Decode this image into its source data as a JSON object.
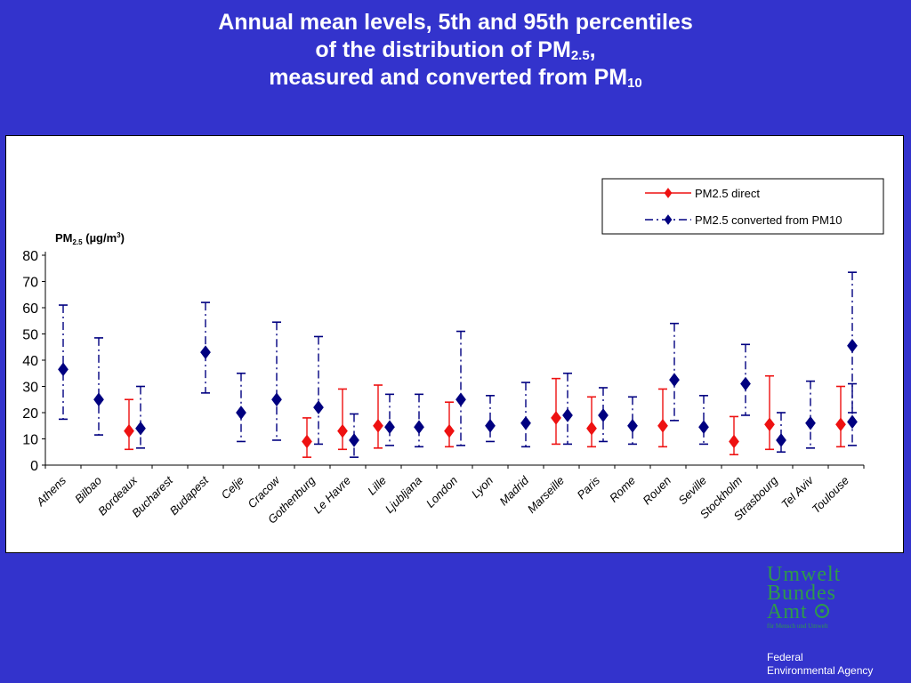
{
  "slide": {
    "title_line1": "Annual mean levels, 5th and 95th percentiles",
    "title_line2_text": "of the distribution of PM",
    "title_line2_sub": "2.5",
    "title_line2_suffix": ",",
    "title_line3_text": "measured and converted from PM",
    "title_line3_sub": "10"
  },
  "logo": {
    "line1": "Umwelt",
    "line2": "Bundes",
    "line3": "Amt",
    "tagline": "für Mensch und Umwelt",
    "emblem_icon": "globe-emblem-icon",
    "color": "#2e9a4a"
  },
  "agency": {
    "line1": "Federal",
    "line2": "Environmental Agency"
  },
  "chart_data": {
    "type": "scatter",
    "title": "",
    "ylabel_main": "PM",
    "ylabel_sub": "2.5",
    "ylabel_unit": " (µg/m",
    "ylabel_sup": "3",
    "ylabel_close": ")",
    "ylim": [
      0,
      80
    ],
    "yticks": [
      0,
      10,
      20,
      30,
      40,
      50,
      60,
      70,
      80
    ],
    "grid": false,
    "legend_position": "top-right",
    "categories": [
      "Athens",
      "Bilbao",
      "Bordeaux",
      "Bucharest",
      "Budapest",
      "Celje",
      "Cracow",
      "Gothenburg",
      "Le Havre",
      "Lille",
      "Ljubljana",
      "London",
      "Lyon",
      "Madrid",
      "Marseille",
      "Paris",
      "Rome",
      "Rouen",
      "Seville",
      "Stockholm",
      "Strasbourg",
      "Tel Aviv",
      "Toulouse"
    ],
    "series": [
      {
        "name": "PM2.5 direct",
        "color": "#ee1111",
        "line_style": "solid",
        "points": [
          {
            "city": "Bordeaux",
            "mean": 13,
            "p5": 6,
            "p95": 25
          },
          {
            "city": "Gothenburg",
            "mean": 9,
            "p5": 3,
            "p95": 18
          },
          {
            "city": "Le Havre",
            "mean": 13,
            "p5": 6,
            "p95": 29
          },
          {
            "city": "Lille",
            "mean": 15,
            "p5": 6.5,
            "p95": 30.5
          },
          {
            "city": "London",
            "mean": 13,
            "p5": 7,
            "p95": 24
          },
          {
            "city": "Marseille",
            "mean": 18,
            "p5": 8,
            "p95": 33
          },
          {
            "city": "Paris",
            "mean": 14,
            "p5": 7,
            "p95": 26
          },
          {
            "city": "Rouen",
            "mean": 15,
            "p5": 7,
            "p95": 29
          },
          {
            "city": "Stockholm",
            "mean": 9,
            "p5": 4,
            "p95": 18.5
          },
          {
            "city": "Strasbourg",
            "mean": 15.5,
            "p5": 6,
            "p95": 34
          },
          {
            "city": "Toulouse",
            "mean": 15.5,
            "p5": 7,
            "p95": 30
          }
        ]
      },
      {
        "name": "PM2.5 converted from PM10",
        "color": "#000080",
        "line_style": "dash-dot",
        "points": [
          {
            "city": "Athens",
            "mean": 36.5,
            "p5": 17.5,
            "p95": 61
          },
          {
            "city": "Bilbao",
            "mean": 25,
            "p5": 11.5,
            "p95": 48.5
          },
          {
            "city": "Bordeaux",
            "mean": 14,
            "p5": 6.5,
            "p95": 30
          },
          {
            "city": "Budapest",
            "mean": 43,
            "p5": 27.5,
            "p95": 62
          },
          {
            "city": "Celje",
            "mean": 20,
            "p5": 9,
            "p95": 35
          },
          {
            "city": "Cracow",
            "mean": 25,
            "p5": 9.5,
            "p95": 54.5
          },
          {
            "city": "Gothenburg",
            "mean": 22,
            "p5": 8,
            "p95": 49
          },
          {
            "city": "Le Havre",
            "mean": 9.5,
            "p5": 3,
            "p95": 19.5
          },
          {
            "city": "Lille",
            "mean": 14.5,
            "p5": 7.5,
            "p95": 27
          },
          {
            "city": "Ljubljana",
            "mean": 14.5,
            "p5": 7,
            "p95": 27
          },
          {
            "city": "London",
            "mean": 25,
            "p5": 7.5,
            "p95": 51
          },
          {
            "city": "Lyon",
            "mean": 15,
            "p5": 9,
            "p95": 26.5
          },
          {
            "city": "Madrid",
            "mean": 16,
            "p5": 7,
            "p95": 31.5
          },
          {
            "city": "Marseille",
            "mean": 19,
            "p5": 8,
            "p95": 35
          },
          {
            "city": "Paris",
            "mean": 19,
            "p5": 9,
            "p95": 29.5
          },
          {
            "city": "Rome",
            "mean": 15,
            "p5": 8,
            "p95": 26
          },
          {
            "city": "Rouen",
            "mean": 32.5,
            "p5": 17,
            "p95": 54
          },
          {
            "city": "Seville",
            "mean": 14.5,
            "p5": 8,
            "p95": 26.5
          },
          {
            "city": "Stockholm",
            "mean": 31,
            "p5": 19,
            "p95": 46
          },
          {
            "city": "Strasbourg",
            "mean": 9.5,
            "p5": 5,
            "p95": 20
          },
          {
            "city": "Tel Aviv",
            "mean": 16,
            "p5": 6.5,
            "p95": 32
          },
          {
            "city": "Toulouse",
            "mean": 45.5,
            "p5": 20,
            "p95": 73.5
          },
          {
            "city": "Toulouse",
            "mean": 16.5,
            "p5": 7.5,
            "p95": 31
          }
        ]
      }
    ]
  }
}
